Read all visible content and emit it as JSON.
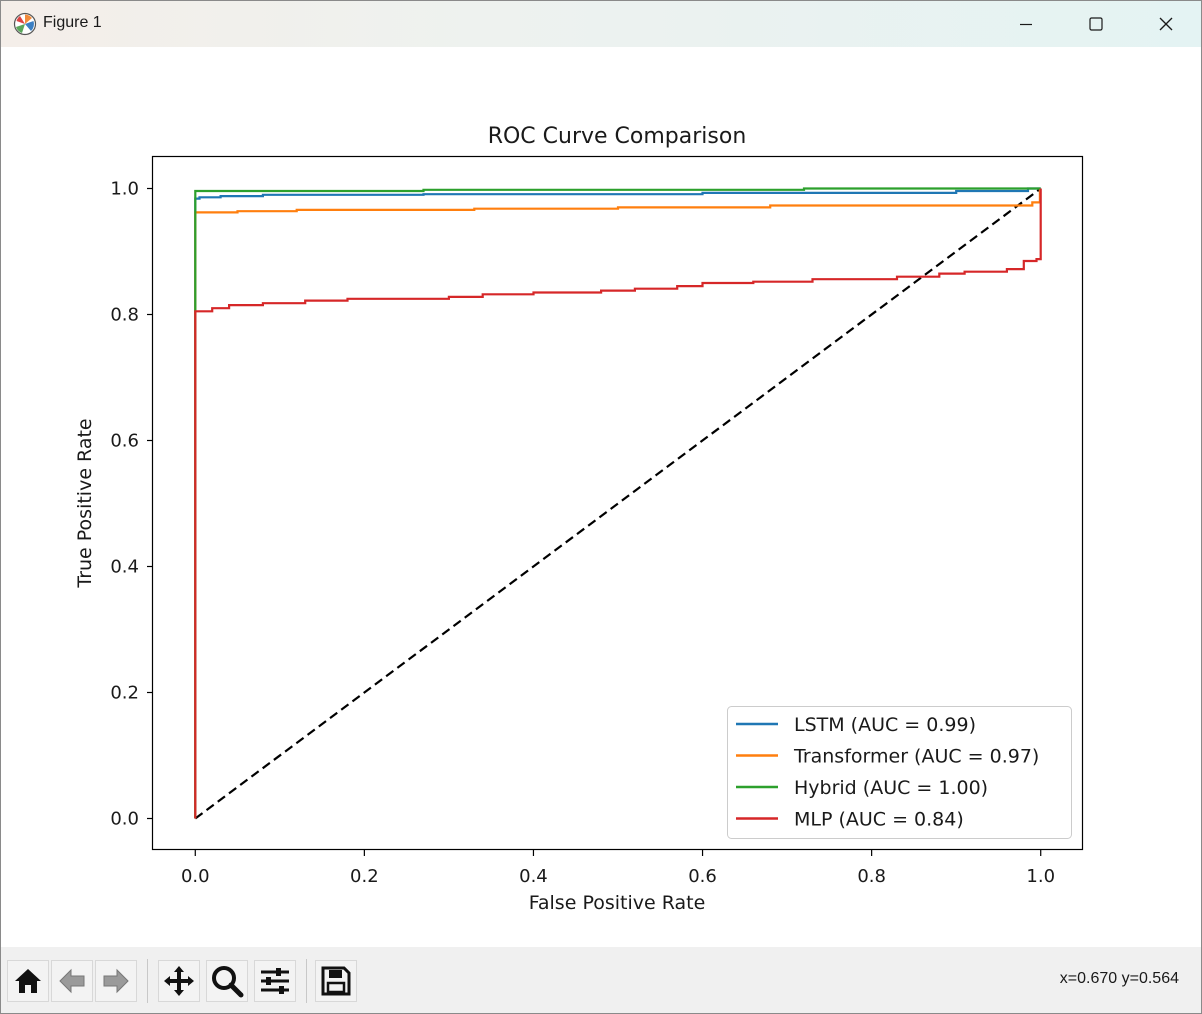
{
  "window": {
    "title": "Figure 1",
    "minimize_icon": "minimize-icon",
    "maximize_icon": "maximize-icon",
    "close_icon": "close-icon"
  },
  "toolbar": {
    "buttons": [
      "home-icon",
      "back-arrow-icon",
      "forward-arrow-icon",
      "pan-icon",
      "zoom-icon",
      "configure-subplots-icon",
      "save-icon"
    ],
    "coords": "x=0.670 y=0.564"
  },
  "chart_data": {
    "type": "line",
    "title": "ROC Curve Comparison",
    "xlabel": "False Positive Rate",
    "ylabel": "True Positive Rate",
    "xlim": [
      -0.05,
      1.05
    ],
    "ylim": [
      -0.05,
      1.05
    ],
    "xticks": [
      "0.0",
      "0.2",
      "0.4",
      "0.6",
      "0.8",
      "1.0"
    ],
    "yticks": [
      "0.0",
      "0.2",
      "0.4",
      "0.6",
      "0.8",
      "1.0"
    ],
    "grid": false,
    "legend_position": "lower right",
    "series": [
      {
        "name": "LSTM (AUC = 0.99)",
        "color": "#1f77b4",
        "x": [
          0,
          0,
          0.005,
          0.005,
          0.03,
          0.03,
          0.08,
          0.08,
          0.27,
          0.27,
          0.6,
          0.6,
          0.9,
          0.9,
          0.985,
          0.985,
          1.0
        ],
        "y": [
          0,
          0.984,
          0.984,
          0.986,
          0.986,
          0.988,
          0.988,
          0.99,
          0.99,
          0.991,
          0.991,
          0.993,
          0.993,
          0.996,
          0.996,
          1.0,
          1.0
        ]
      },
      {
        "name": "Transformer (AUC = 0.97)",
        "color": "#ff7f0e",
        "x": [
          0,
          0,
          0.05,
          0.05,
          0.12,
          0.12,
          0.33,
          0.33,
          0.5,
          0.5,
          0.68,
          0.68,
          0.99,
          0.99,
          0.999,
          0.999
        ],
        "y": [
          0,
          0.962,
          0.962,
          0.964,
          0.964,
          0.966,
          0.966,
          0.968,
          0.968,
          0.97,
          0.97,
          0.973,
          0.973,
          0.978,
          0.978,
          1.0
        ]
      },
      {
        "name": "Hybrid (AUC = 1.00)",
        "color": "#2ca02c",
        "x": [
          0,
          0,
          0.27,
          0.27,
          0.72,
          0.72,
          1.0
        ],
        "y": [
          0,
          0.996,
          0.996,
          0.998,
          0.998,
          1.0,
          1.0
        ]
      },
      {
        "name": "MLP (AUC = 0.84)",
        "color": "#d62728",
        "x": [
          0,
          0,
          0.02,
          0.02,
          0.04,
          0.04,
          0.08,
          0.08,
          0.13,
          0.13,
          0.18,
          0.18,
          0.3,
          0.3,
          0.34,
          0.34,
          0.4,
          0.4,
          0.48,
          0.48,
          0.52,
          0.52,
          0.57,
          0.57,
          0.6,
          0.6,
          0.66,
          0.66,
          0.73,
          0.73,
          0.83,
          0.83,
          0.88,
          0.88,
          0.91,
          0.91,
          0.96,
          0.96,
          0.98,
          0.98,
          0.995,
          0.995,
          1.0,
          1.0
        ],
        "y": [
          0,
          0.805,
          0.805,
          0.81,
          0.81,
          0.815,
          0.815,
          0.818,
          0.818,
          0.822,
          0.822,
          0.825,
          0.825,
          0.828,
          0.828,
          0.832,
          0.832,
          0.835,
          0.835,
          0.838,
          0.838,
          0.841,
          0.841,
          0.845,
          0.845,
          0.85,
          0.85,
          0.852,
          0.852,
          0.856,
          0.856,
          0.86,
          0.86,
          0.865,
          0.865,
          0.868,
          0.868,
          0.872,
          0.872,
          0.885,
          0.885,
          0.888,
          0.888,
          1.0
        ]
      },
      {
        "color": "#000000",
        "style": "dashed",
        "x": [
          0,
          1
        ],
        "y": [
          0,
          1
        ]
      }
    ]
  }
}
